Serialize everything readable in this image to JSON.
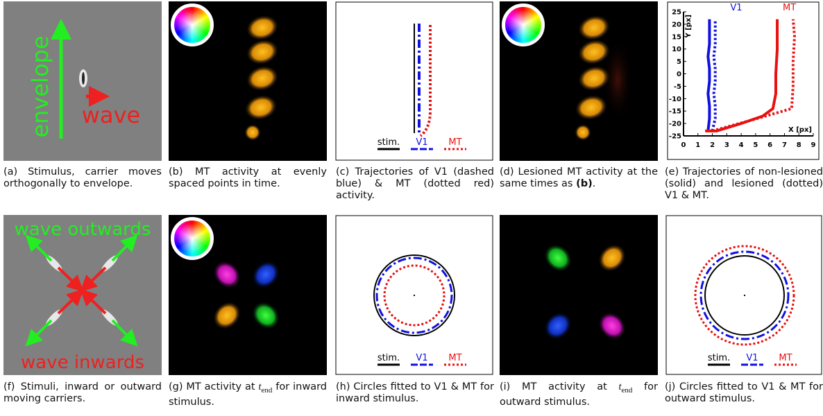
{
  "a": {
    "envelope": "envelope",
    "wave": "wave",
    "caption": "(a) Stimulus, carrier moves orthogonally to envelope."
  },
  "b": {
    "caption": "(b) MT activity at evenly spaced points in time."
  },
  "c": {
    "legend": [
      "stim.",
      "V1",
      "MT"
    ],
    "caption": "(c) Trajectories of V1 (dashed blue) & MT (dotted red) activity."
  },
  "d": {
    "caption_start": "(d) Lesioned MT activity at the same times as ",
    "caption_bold": "(b)",
    "caption_end": "."
  },
  "e": {
    "caption": "(e) Trajectories of non-lesioned (solid) and lesioned (dotted) V1 & MT.",
    "chart_data": {
      "type": "line",
      "xlabel": "X [px]",
      "ylabel": "Y [px]",
      "xlim": [
        0,
        9
      ],
      "ylim": [
        -25,
        25
      ],
      "xticks": [
        0,
        1,
        2,
        3,
        4,
        5,
        6,
        7,
        8,
        9
      ],
      "yticks": [
        -25,
        -20,
        -15,
        -10,
        -5,
        0,
        5,
        10,
        15,
        20,
        25
      ],
      "series": [
        {
          "name": "V1",
          "color": "#1010e0",
          "style": "solid",
          "x": [
            1.7,
            1.8,
            1.8,
            1.7,
            1.8,
            1.8,
            1.7,
            1.8,
            1.8,
            1.8
          ],
          "values": [
            -23,
            -18,
            -13,
            -8,
            -3,
            2,
            7,
            12,
            17,
            22
          ]
        },
        {
          "color": "#1010e0",
          "style": "dotted",
          "x": [
            2.0,
            2.2,
            2.2,
            2.1,
            2.2,
            2.2,
            2.1,
            2.2,
            2.2,
            2.2
          ],
          "values": [
            -23,
            -18,
            -13,
            -8,
            -3,
            2,
            7,
            12,
            17,
            22
          ]
        },
        {
          "name": "MT",
          "color": "#e81010",
          "style": "solid",
          "x": [
            1.5,
            2.3,
            4,
            5.5,
            6.2,
            6.4,
            6.4,
            6.5,
            6.5
          ],
          "values": [
            -23,
            -23,
            -20,
            -17,
            -14,
            -8,
            0,
            10,
            22
          ]
        },
        {
          "color": "#e81010",
          "style": "dotted",
          "x": [
            2.0,
            4.5,
            7.5,
            7.6,
            7.6,
            7.7,
            7.6
          ],
          "values": [
            -23,
            -19,
            -14,
            -5,
            5,
            15,
            22
          ]
        }
      ]
    }
  },
  "f": {
    "outwards": "wave outwards",
    "inwards": "wave inwards",
    "caption": "(f) Stimuli, inward or outward moving carriers."
  },
  "g": {
    "caption_start": "(g) MT activity at ",
    "t": "t",
    "sub": "end",
    "caption_end": " for inward stimulus."
  },
  "h": {
    "legend": [
      "stim.",
      "V1",
      "MT"
    ],
    "caption": "(h) Circles fitted to V1 & MT for inward stimulus."
  },
  "i": {
    "caption_start": "(i) MT activity at ",
    "t": "t",
    "sub": "end",
    "caption_end": " for outward stimulus."
  },
  "j": {
    "legend": [
      "stim.",
      "V1",
      "MT"
    ],
    "caption": "(j) Circles fitted to V1 & MT for outward stimulus."
  }
}
